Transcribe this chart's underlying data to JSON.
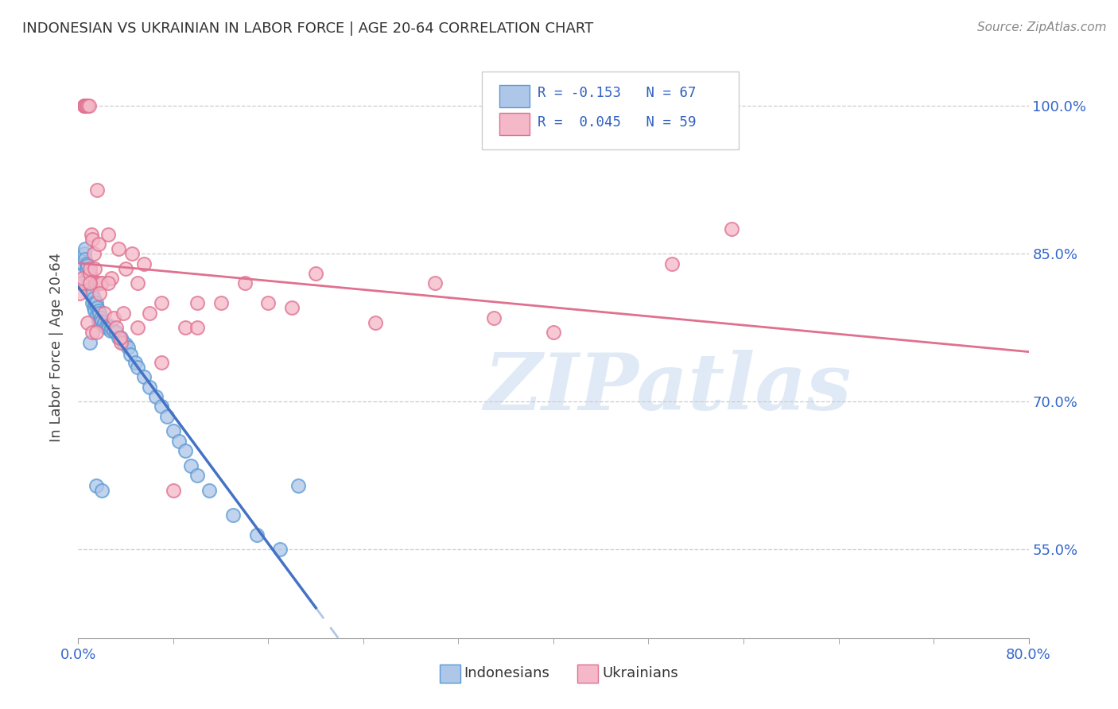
{
  "title": "INDONESIAN VS UKRAINIAN IN LABOR FORCE | AGE 20-64 CORRELATION CHART",
  "source": "Source: ZipAtlas.com",
  "ylabel": "In Labor Force | Age 20-64",
  "ytick_vals": [
    0.55,
    0.7,
    0.85,
    1.0
  ],
  "ytick_labels": [
    "55.0%",
    "70.0%",
    "85.0%",
    "100.0%"
  ],
  "xlim": [
    0.0,
    0.8
  ],
  "ylim": [
    0.46,
    1.05
  ],
  "indonesian_color_fill": "#aec6e8",
  "indonesian_color_edge": "#5b9bd5",
  "ukrainian_color_fill": "#f4b8c8",
  "ukrainian_color_edge": "#e07090",
  "indo_trend_color": "#4472c4",
  "ukr_trend_color": "#e07090",
  "indo_dash_color": "#b0c8e8",
  "watermark": "ZIPatlas",
  "background_color": "#ffffff",
  "legend_text_color": "#3060c0",
  "indonesian_x": [
    0.002,
    0.003,
    0.004,
    0.005,
    0.006,
    0.006,
    0.007,
    0.007,
    0.008,
    0.008,
    0.009,
    0.009,
    0.01,
    0.01,
    0.011,
    0.011,
    0.012,
    0.012,
    0.013,
    0.013,
    0.014,
    0.014,
    0.015,
    0.016,
    0.016,
    0.017,
    0.017,
    0.018,
    0.018,
    0.019,
    0.02,
    0.021,
    0.022,
    0.023,
    0.024,
    0.025,
    0.026,
    0.027,
    0.028,
    0.03,
    0.032,
    0.034,
    0.036,
    0.038,
    0.04,
    0.042,
    0.044,
    0.048,
    0.05,
    0.055,
    0.06,
    0.065,
    0.07,
    0.075,
    0.08,
    0.085,
    0.09,
    0.095,
    0.1,
    0.11,
    0.13,
    0.15,
    0.17,
    0.185,
    0.01,
    0.015,
    0.02
  ],
  "indonesian_y": [
    0.82,
    0.83,
    0.84,
    0.85,
    0.855,
    0.845,
    0.84,
    0.835,
    0.838,
    0.825,
    0.822,
    0.815,
    0.82,
    0.815,
    0.81,
    0.808,
    0.81,
    0.8,
    0.805,
    0.795,
    0.8,
    0.792,
    0.8,
    0.795,
    0.788,
    0.792,
    0.782,
    0.79,
    0.78,
    0.785,
    0.782,
    0.778,
    0.78,
    0.775,
    0.778,
    0.778,
    0.775,
    0.772,
    0.775,
    0.772,
    0.77,
    0.765,
    0.765,
    0.76,
    0.758,
    0.755,
    0.748,
    0.74,
    0.735,
    0.725,
    0.715,
    0.705,
    0.695,
    0.685,
    0.67,
    0.66,
    0.65,
    0.635,
    0.625,
    0.61,
    0.585,
    0.565,
    0.55,
    0.615,
    0.76,
    0.615,
    0.61
  ],
  "ukrainian_x": [
    0.001,
    0.003,
    0.004,
    0.005,
    0.005,
    0.006,
    0.006,
    0.007,
    0.008,
    0.009,
    0.01,
    0.01,
    0.011,
    0.012,
    0.013,
    0.014,
    0.015,
    0.016,
    0.017,
    0.018,
    0.02,
    0.022,
    0.025,
    0.028,
    0.03,
    0.032,
    0.034,
    0.036,
    0.038,
    0.04,
    0.045,
    0.05,
    0.055,
    0.06,
    0.07,
    0.08,
    0.09,
    0.1,
    0.12,
    0.14,
    0.16,
    0.18,
    0.2,
    0.25,
    0.3,
    0.35,
    0.4,
    0.5,
    0.55,
    0.008,
    0.01,
    0.012,
    0.015,
    0.018,
    0.025,
    0.035,
    0.05,
    0.07,
    0.1
  ],
  "ukrainian_y": [
    0.81,
    0.82,
    0.825,
    1.0,
    1.0,
    1.0,
    1.0,
    1.0,
    1.0,
    1.0,
    0.83,
    0.835,
    0.87,
    0.865,
    0.85,
    0.835,
    0.82,
    0.915,
    0.86,
    0.82,
    0.82,
    0.79,
    0.87,
    0.825,
    0.785,
    0.775,
    0.855,
    0.76,
    0.79,
    0.835,
    0.85,
    0.82,
    0.84,
    0.79,
    0.8,
    0.61,
    0.775,
    0.775,
    0.8,
    0.82,
    0.8,
    0.795,
    0.83,
    0.78,
    0.82,
    0.785,
    0.77,
    0.84,
    0.875,
    0.78,
    0.82,
    0.77,
    0.77,
    0.81,
    0.82,
    0.765,
    0.775,
    0.74,
    0.8
  ]
}
